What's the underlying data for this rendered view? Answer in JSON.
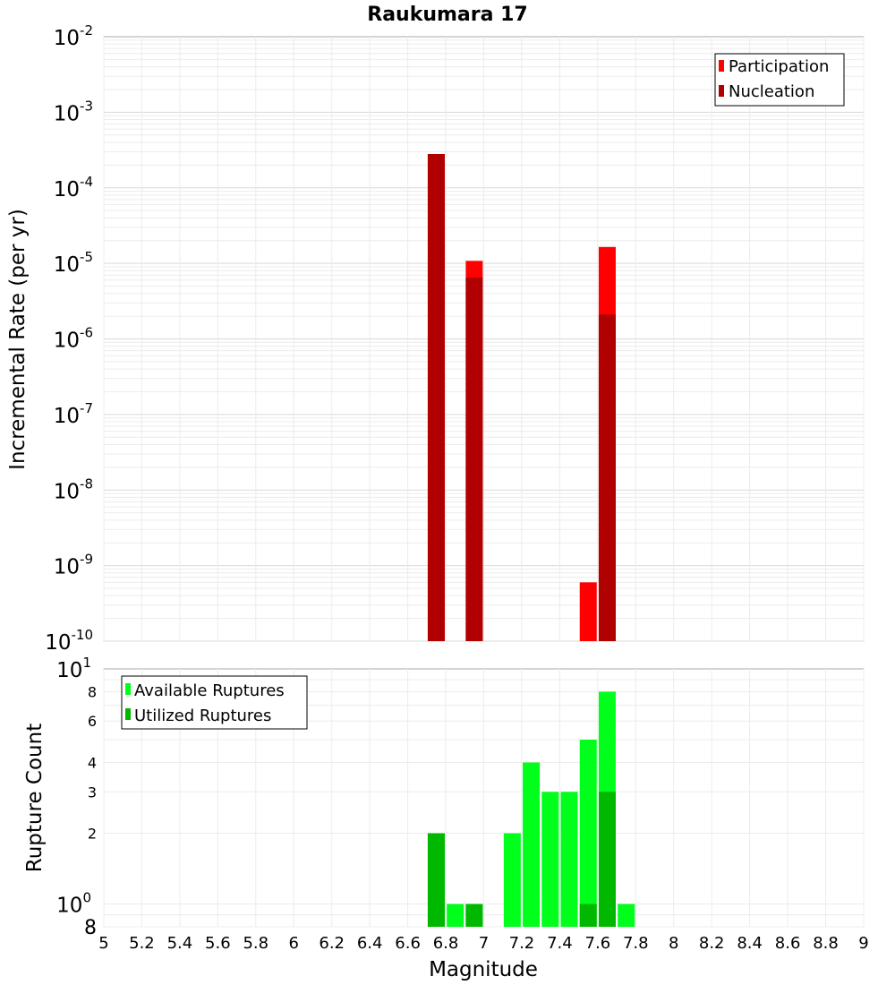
{
  "chart_data": [
    {
      "type": "bar",
      "title": "Raukumara 17",
      "xlabel": "",
      "ylabel": "Incremental Rate (per yr)",
      "yscale": "log",
      "ylim": [
        1e-10,
        0.01
      ],
      "xlim": [
        5,
        9
      ],
      "grid": true,
      "legend_position": "top-right",
      "series": [
        {
          "name": "Participation",
          "color": "#ff0000",
          "points": [
            {
              "x": 6.75,
              "y": 0.00028
            },
            {
              "x": 6.95,
              "y": 1.08e-05
            },
            {
              "x": 7.55,
              "y": 6e-10
            },
            {
              "x": 7.65,
              "y": 1.65e-05
            }
          ]
        },
        {
          "name": "Nucleation",
          "color": "#b00000",
          "points": [
            {
              "x": 6.75,
              "y": 0.00028
            },
            {
              "x": 6.95,
              "y": 6.5e-06
            },
            {
              "x": 7.65,
              "y": 2.1e-06
            }
          ]
        }
      ]
    },
    {
      "type": "bar",
      "title": "",
      "xlabel": "Magnitude",
      "ylabel": "Rupture Count",
      "yscale": "log",
      "ylim": [
        0.8,
        10
      ],
      "xlim": [
        5,
        9
      ],
      "grid": true,
      "legend_position": "top-left",
      "series": [
        {
          "name": "Available Ruptures",
          "color": "#00ff1a",
          "points": [
            {
              "x": 6.75,
              "y": 2
            },
            {
              "x": 6.85,
              "y": 1
            },
            {
              "x": 6.95,
              "y": 1
            },
            {
              "x": 7.15,
              "y": 2
            },
            {
              "x": 7.25,
              "y": 4
            },
            {
              "x": 7.35,
              "y": 3
            },
            {
              "x": 7.45,
              "y": 3
            },
            {
              "x": 7.55,
              "y": 5
            },
            {
              "x": 7.65,
              "y": 8
            },
            {
              "x": 7.75,
              "y": 1
            }
          ]
        },
        {
          "name": "Utilized Ruptures",
          "color": "#00b800",
          "points": [
            {
              "x": 6.75,
              "y": 2
            },
            {
              "x": 6.95,
              "y": 1
            },
            {
              "x": 7.55,
              "y": 1
            },
            {
              "x": 7.65,
              "y": 3
            }
          ]
        }
      ]
    }
  ],
  "top_y_ticks": [
    {
      "base": "10",
      "exp": "-2",
      "value": 0.01
    },
    {
      "base": "10",
      "exp": "-3",
      "value": 0.001
    },
    {
      "base": "10",
      "exp": "-4",
      "value": 0.0001
    },
    {
      "base": "10",
      "exp": "-5",
      "value": 1e-05
    },
    {
      "base": "10",
      "exp": "-6",
      "value": 1e-06
    },
    {
      "base": "10",
      "exp": "-7",
      "value": 1e-07
    },
    {
      "base": "10",
      "exp": "-8",
      "value": 1e-08
    },
    {
      "base": "10",
      "exp": "-9",
      "value": 1e-09
    },
    {
      "base": "10",
      "exp": "-10",
      "value": 1e-10
    }
  ],
  "bottom_y_ticks": [
    {
      "label": "8",
      "value": 8
    },
    {
      "label": "6",
      "value": 6
    },
    {
      "label": "4",
      "value": 4
    },
    {
      "label": "3",
      "value": 3
    },
    {
      "label": "2",
      "value": 2
    }
  ],
  "bottom_y_power_ticks": [
    {
      "base": "10",
      "exp": "1",
      "value": 10
    },
    {
      "base": "10",
      "exp": "0",
      "value": 1
    }
  ],
  "bottom_y_min_label": {
    "label": "8",
    "value": 0.8
  },
  "x_ticks": [
    "5",
    "5.2",
    "5.4",
    "5.6",
    "5.8",
    "6",
    "6.2",
    "6.4",
    "6.6",
    "6.8",
    "7",
    "7.2",
    "7.4",
    "7.6",
    "7.8",
    "8",
    "8.2",
    "8.4",
    "8.6",
    "8.8",
    "9"
  ]
}
